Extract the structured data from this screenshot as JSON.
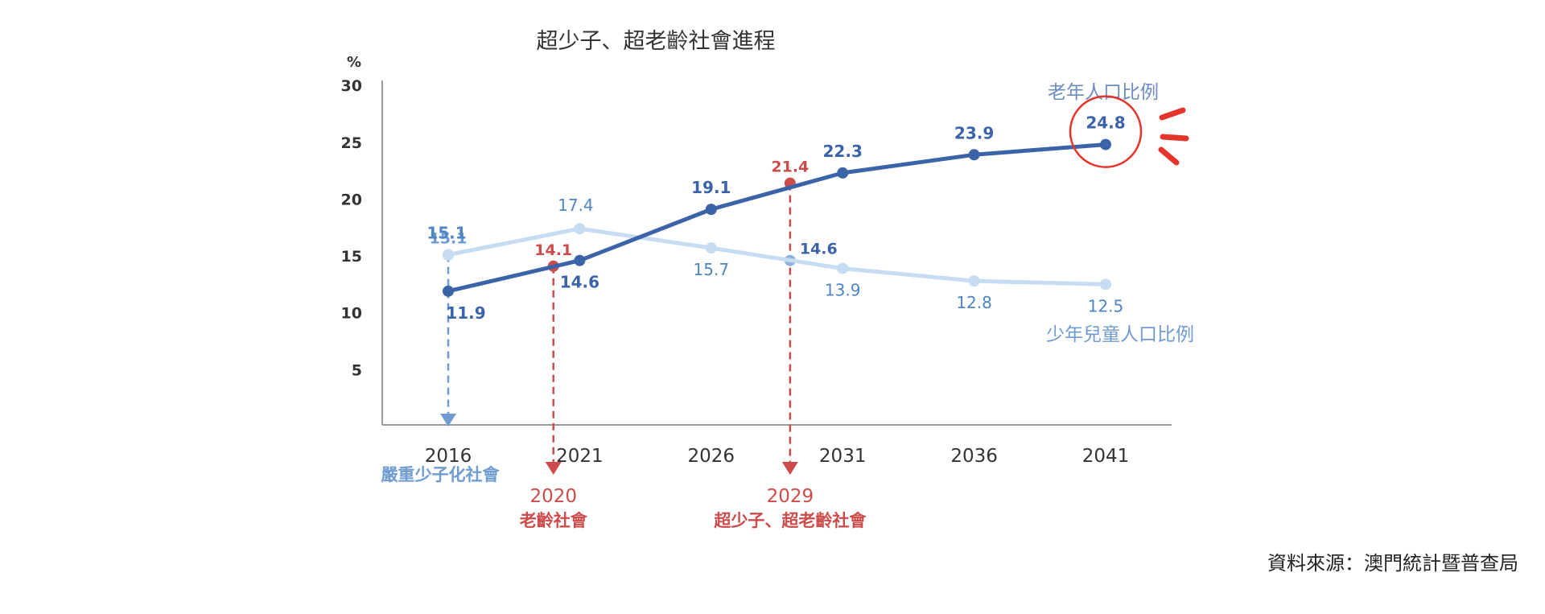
{
  "chart_data": {
    "type": "line",
    "title": "超少子、超老齡社會進程",
    "ylabel": "%",
    "ylim": [
      0,
      30
    ],
    "yticks": [
      "5",
      "10",
      "15",
      "20",
      "25",
      "30"
    ],
    "categories": [
      "2016",
      "2021",
      "2026",
      "2031",
      "2036",
      "2041"
    ],
    "series": [
      {
        "name": "老年人口比例",
        "color": "#3b63a8",
        "values": [
          11.9,
          14.6,
          19.1,
          22.3,
          23.9,
          24.8
        ],
        "labels": [
          "11.9",
          "14.6",
          "19.1",
          "22.3",
          "23.9",
          "24.8"
        ]
      },
      {
        "name": "少年兒童人口比例",
        "color": "#c5dcf3",
        "label_color": "#4f85c2",
        "values": [
          15.1,
          17.4,
          15.7,
          13.9,
          12.8,
          12.5
        ],
        "labels": [
          "15.1",
          "17.4",
          "15.7",
          "13.9",
          "12.8",
          "12.5"
        ]
      }
    ],
    "milestones": [
      {
        "year_value": "2016",
        "year_label": "",
        "caption": "嚴重少子化社會",
        "color": "#6f9bd0",
        "marker_value": "15.1"
      },
      {
        "year_value": "2020",
        "year_label": "2020",
        "caption": "老齡社會",
        "color": "#cc4b4b",
        "marker_value": "14.1"
      },
      {
        "year_value": "2029",
        "year_label": "2029",
        "caption": "超少子、超老齡社會",
        "color": "#cc4b4b",
        "marker_value": "21.4",
        "extra_label": "14.6"
      }
    ],
    "highlight": {
      "series": "老年人口比例",
      "category": "2041",
      "color": "#e4352c"
    }
  },
  "source": "資料來源：澳門統計暨普查局"
}
